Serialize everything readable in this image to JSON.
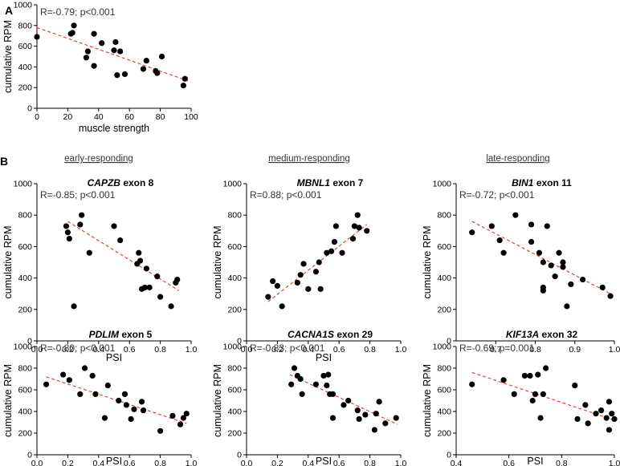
{
  "figure": {
    "panel_a_letter": "A",
    "panel_b_letter": "B",
    "group_headers": [
      "early-responding",
      "medium-responding",
      "late-responding"
    ]
  },
  "chart_data": [
    {
      "type": "scatter",
      "id": "a",
      "title": "",
      "title_gene": "",
      "title_rest": "",
      "stat": "R=-0.79; p<0.001",
      "xlabel": "muscle strength",
      "ylabel": "cumulative RPM",
      "xlim": [
        0,
        100
      ],
      "ylim": [
        0,
        1000
      ],
      "xticks": [
        0,
        20,
        40,
        60,
        80,
        100
      ],
      "yticks": [
        0,
        200,
        400,
        600,
        800,
        1000
      ],
      "xdecimals": 0,
      "fit": [
        [
          0,
          780
        ],
        [
          98,
          265
        ]
      ],
      "points": [
        [
          0,
          690
        ],
        [
          22,
          720
        ],
        [
          23,
          730
        ],
        [
          24,
          800
        ],
        [
          32,
          490
        ],
        [
          33,
          550
        ],
        [
          37,
          410
        ],
        [
          37,
          720
        ],
        [
          42,
          630
        ],
        [
          50,
          560
        ],
        [
          51,
          640
        ],
        [
          52,
          320
        ],
        [
          54,
          550
        ],
        [
          57,
          330
        ],
        [
          69,
          380
        ],
        [
          71,
          460
        ],
        [
          77,
          360
        ],
        [
          78,
          340
        ],
        [
          81,
          500
        ],
        [
          95,
          220
        ],
        [
          96,
          285
        ]
      ]
    },
    {
      "type": "scatter",
      "id": "b1",
      "title": "CAPZB exon 8",
      "title_gene": "CAPZB",
      "title_rest": " exon 8",
      "stat": "R=-0.85; p<0.001",
      "xlabel": "PSI",
      "ylabel": "cumulative RPM",
      "xlim": [
        0.0,
        1.0
      ],
      "ylim": [
        0,
        1000
      ],
      "xticks": [
        0.0,
        0.2,
        0.4,
        0.6,
        0.8,
        1.0
      ],
      "yticks": [
        0,
        200,
        400,
        600,
        800,
        1000
      ],
      "xdecimals": 1,
      "fit": [
        [
          0.2,
          760
        ],
        [
          0.92,
          320
        ]
      ],
      "points": [
        [
          0.19,
          730
        ],
        [
          0.2,
          690
        ],
        [
          0.21,
          650
        ],
        [
          0.24,
          220
        ],
        [
          0.28,
          740
        ],
        [
          0.29,
          800
        ],
        [
          0.34,
          560
        ],
        [
          0.5,
          730
        ],
        [
          0.54,
          640
        ],
        [
          0.65,
          490
        ],
        [
          0.66,
          560
        ],
        [
          0.67,
          510
        ],
        [
          0.68,
          330
        ],
        [
          0.7,
          340
        ],
        [
          0.71,
          460
        ],
        [
          0.73,
          340
        ],
        [
          0.78,
          410
        ],
        [
          0.8,
          280
        ],
        [
          0.87,
          220
        ],
        [
          0.9,
          370
        ],
        [
          0.91,
          390
        ]
      ]
    },
    {
      "type": "scatter",
      "id": "b2",
      "title": "MBNL1 exon 7",
      "title_gene": "MBNL1",
      "title_rest": " exon 7",
      "stat": "R=0.88; p<0.001",
      "xlabel": "PSI",
      "ylabel": "cumulative RPM",
      "xlim": [
        0.0,
        1.0
      ],
      "ylim": [
        0,
        1000
      ],
      "xticks": [
        0.0,
        0.2,
        0.4,
        0.6,
        0.8,
        1.0
      ],
      "yticks": [
        0,
        200,
        400,
        600,
        800,
        1000
      ],
      "xdecimals": 1,
      "fit": [
        [
          0.14,
          250
        ],
        [
          0.78,
          740
        ]
      ],
      "points": [
        [
          0.14,
          280
        ],
        [
          0.17,
          380
        ],
        [
          0.2,
          350
        ],
        [
          0.23,
          220
        ],
        [
          0.33,
          370
        ],
        [
          0.35,
          420
        ],
        [
          0.37,
          490
        ],
        [
          0.4,
          330
        ],
        [
          0.45,
          440
        ],
        [
          0.47,
          500
        ],
        [
          0.48,
          330
        ],
        [
          0.52,
          560
        ],
        [
          0.55,
          570
        ],
        [
          0.57,
          630
        ],
        [
          0.58,
          730
        ],
        [
          0.62,
          560
        ],
        [
          0.69,
          650
        ],
        [
          0.7,
          730
        ],
        [
          0.72,
          800
        ],
        [
          0.73,
          720
        ],
        [
          0.78,
          700
        ]
      ]
    },
    {
      "type": "scatter",
      "id": "b3",
      "title": "BIN1 exon 11",
      "title_gene": "BIN1",
      "title_rest": " exon 11",
      "stat": "R=-0.72; p<0.001",
      "xlabel": "",
      "ylabel": "cumulative RPM",
      "xlim": [
        0.6,
        1.0
      ],
      "ylim": [
        0,
        1000
      ],
      "xticks": [
        0.7,
        0.8,
        0.9,
        1.0
      ],
      "yticks": [
        0,
        200,
        400,
        600,
        800,
        1000
      ],
      "xdecimals": 1,
      "fit": [
        [
          0.64,
          760
        ],
        [
          0.99,
          300
        ]
      ],
      "points": [
        [
          0.64,
          690
        ],
        [
          0.69,
          730
        ],
        [
          0.71,
          640
        ],
        [
          0.72,
          560
        ],
        [
          0.75,
          800
        ],
        [
          0.79,
          740
        ],
        [
          0.79,
          630
        ],
        [
          0.81,
          560
        ],
        [
          0.82,
          340
        ],
        [
          0.82,
          500
        ],
        [
          0.82,
          320
        ],
        [
          0.83,
          730
        ],
        [
          0.84,
          480
        ],
        [
          0.85,
          410
        ],
        [
          0.86,
          560
        ],
        [
          0.87,
          500
        ],
        [
          0.87,
          470
        ],
        [
          0.88,
          220
        ],
        [
          0.89,
          360
        ],
        [
          0.92,
          390
        ],
        [
          0.97,
          340
        ],
        [
          0.99,
          285
        ]
      ]
    },
    {
      "type": "scatter",
      "id": "b4",
      "title": "PDLIM exon 5",
      "title_gene": "PDLIM",
      "title_rest": " exon 5",
      "stat": "R=-0.80; p<0.001",
      "xlabel": "PSI",
      "ylabel": "cumulative RPM",
      "xlim": [
        0.0,
        1.0
      ],
      "ylim": [
        0,
        1000
      ],
      "xticks": [
        0.0,
        0.2,
        0.4,
        0.6,
        0.8,
        1.0
      ],
      "yticks": [
        0,
        200,
        400,
        600,
        800,
        1000
      ],
      "xdecimals": 1,
      "fit": [
        [
          0.06,
          720
        ],
        [
          0.97,
          290
        ]
      ],
      "points": [
        [
          0.06,
          650
        ],
        [
          0.17,
          740
        ],
        [
          0.21,
          690
        ],
        [
          0.28,
          560
        ],
        [
          0.31,
          800
        ],
        [
          0.36,
          730
        ],
        [
          0.38,
          560
        ],
        [
          0.44,
          340
        ],
        [
          0.46,
          640
        ],
        [
          0.53,
          500
        ],
        [
          0.57,
          560
        ],
        [
          0.58,
          460
        ],
        [
          0.61,
          330
        ],
        [
          0.63,
          420
        ],
        [
          0.68,
          490
        ],
        [
          0.69,
          410
        ],
        [
          0.8,
          220
        ],
        [
          0.88,
          360
        ],
        [
          0.93,
          280
        ],
        [
          0.95,
          340
        ],
        [
          0.97,
          380
        ]
      ]
    },
    {
      "type": "scatter",
      "id": "b5",
      "title": "CACNA1S exon 29",
      "title_gene": "CACNA1S",
      "title_rest": " exon 29",
      "stat": "R=-0.83; p<0.001",
      "xlabel": "PSI",
      "ylabel": "cumulative RPM",
      "xlim": [
        0.0,
        1.0
      ],
      "ylim": [
        0,
        1000
      ],
      "xticks": [
        0.0,
        0.2,
        0.4,
        0.6,
        0.8,
        1.0
      ],
      "yticks": [
        0,
        200,
        400,
        600,
        800,
        1000
      ],
      "xdecimals": 1,
      "fit": [
        [
          0.28,
          740
        ],
        [
          0.98,
          280
        ]
      ],
      "points": [
        [
          0.29,
          650
        ],
        [
          0.31,
          800
        ],
        [
          0.33,
          730
        ],
        [
          0.35,
          700
        ],
        [
          0.36,
          560
        ],
        [
          0.45,
          650
        ],
        [
          0.5,
          730
        ],
        [
          0.52,
          640
        ],
        [
          0.53,
          740
        ],
        [
          0.54,
          560
        ],
        [
          0.56,
          340
        ],
        [
          0.56,
          560
        ],
        [
          0.63,
          460
        ],
        [
          0.66,
          500
        ],
        [
          0.72,
          410
        ],
        [
          0.73,
          330
        ],
        [
          0.77,
          370
        ],
        [
          0.83,
          230
        ],
        [
          0.84,
          380
        ],
        [
          0.86,
          490
        ],
        [
          0.9,
          290
        ],
        [
          0.97,
          340
        ]
      ]
    },
    {
      "type": "scatter",
      "id": "b6",
      "title": "KIF13A exon 32",
      "title_gene": "KIF13A",
      "title_rest": " exon 32",
      "stat": "R=-0.69; p=0.001",
      "xlabel": "PSI",
      "ylabel": "cumulative RPM",
      "xlim": [
        0.4,
        1.0
      ],
      "ylim": [
        0,
        1000
      ],
      "xticks": [
        0.4,
        0.6,
        0.8,
        1.0
      ],
      "yticks": [
        0,
        200,
        400,
        600,
        800,
        1000
      ],
      "xdecimals": 1,
      "fit": [
        [
          0.46,
          760
        ],
        [
          1.0,
          320
        ]
      ],
      "points": [
        [
          0.46,
          650
        ],
        [
          0.58,
          690
        ],
        [
          0.62,
          560
        ],
        [
          0.66,
          730
        ],
        [
          0.68,
          730
        ],
        [
          0.69,
          500
        ],
        [
          0.7,
          560
        ],
        [
          0.71,
          740
        ],
        [
          0.72,
          340
        ],
        [
          0.73,
          560
        ],
        [
          0.74,
          800
        ],
        [
          0.85,
          640
        ],
        [
          0.86,
          330
        ],
        [
          0.89,
          460
        ],
        [
          0.9,
          290
        ],
        [
          0.93,
          380
        ],
        [
          0.95,
          410
        ],
        [
          0.97,
          340
        ],
        [
          0.98,
          230
        ],
        [
          0.98,
          490
        ],
        [
          0.99,
          380
        ],
        [
          1.0,
          330
        ]
      ]
    }
  ]
}
